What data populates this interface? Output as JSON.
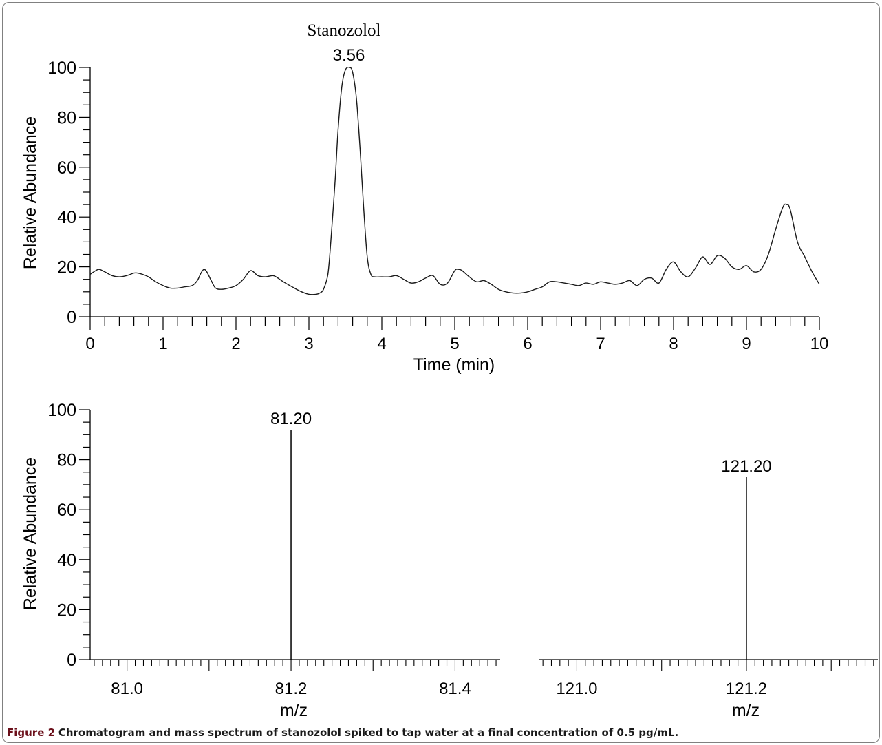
{
  "chart_data": [
    {
      "type": "line",
      "ylabel": "Relative Abundance",
      "xlabel": "Time (min)",
      "xlim": [
        0,
        10
      ],
      "ylim": [
        0,
        100
      ],
      "x_ticks": [
        "0",
        "1",
        "2",
        "3",
        "4",
        "5",
        "6",
        "7",
        "8",
        "9",
        "10"
      ],
      "y_ticks": [
        "0",
        "20",
        "40",
        "60",
        "80",
        "100"
      ],
      "annotations": [
        {
          "compound": "Stanozolol",
          "time_label": "3.56",
          "x": 3.56,
          "y": 100
        }
      ],
      "series": [
        {
          "x": [
            0,
            0.05,
            0.12,
            0.2,
            0.3,
            0.4,
            0.5,
            0.6,
            0.65,
            0.72,
            0.8,
            0.9,
            1.0,
            1.1,
            1.2,
            1.3,
            1.4,
            1.47,
            1.52,
            1.56,
            1.6,
            1.66,
            1.72,
            1.8,
            1.9,
            2.0,
            2.1,
            2.2,
            2.3,
            2.4,
            2.5,
            2.55,
            2.65,
            2.8,
            2.9,
            3.0,
            3.1,
            3.15,
            3.2,
            3.26,
            3.3,
            3.36,
            3.4,
            3.45,
            3.5,
            3.56,
            3.6,
            3.65,
            3.7,
            3.75,
            3.8,
            3.85,
            3.9,
            4.0,
            4.1,
            4.2,
            4.3,
            4.4,
            4.5,
            4.6,
            4.7,
            4.8,
            4.9,
            5.0,
            5.05,
            5.1,
            5.2,
            5.3,
            5.4,
            5.5,
            5.6,
            5.7,
            5.8,
            5.9,
            6.0,
            6.1,
            6.2,
            6.3,
            6.4,
            6.5,
            6.6,
            6.7,
            6.8,
            6.9,
            7.0,
            7.1,
            7.2,
            7.3,
            7.4,
            7.5,
            7.6,
            7.7,
            7.8,
            7.9,
            8.0,
            8.1,
            8.2,
            8.3,
            8.4,
            8.5,
            8.6,
            8.7,
            8.8,
            8.9,
            9.0,
            9.1,
            9.2,
            9.3,
            9.4,
            9.5,
            9.55,
            9.6,
            9.7,
            9.8,
            9.9,
            10.0
          ],
          "y": [
            17,
            18,
            19,
            18,
            16.5,
            16,
            16.5,
            17.5,
            17.5,
            17,
            16,
            14,
            12.5,
            11.5,
            11.5,
            12,
            12.5,
            14.5,
            17.5,
            19,
            18,
            14.5,
            11.5,
            11,
            11.5,
            12.5,
            15,
            18.5,
            16.5,
            16,
            16.5,
            16,
            14,
            11.5,
            10,
            9,
            9,
            9.5,
            11,
            17,
            30,
            55,
            75,
            92,
            99,
            100,
            98,
            88,
            68,
            44,
            24,
            17,
            16,
            16,
            16,
            16.5,
            15,
            13.5,
            14,
            15.5,
            16.5,
            13,
            13.5,
            18.5,
            19,
            18.5,
            16,
            14,
            14.5,
            13,
            11,
            10,
            9.5,
            9.5,
            10,
            11,
            12,
            14,
            14,
            13.5,
            13,
            12.5,
            13.5,
            13,
            14,
            13.5,
            13,
            13.5,
            14.5,
            12.5,
            15,
            15.5,
            13.5,
            19,
            22,
            18,
            16,
            19.5,
            24,
            21,
            24.5,
            23.5,
            20,
            19,
            20.5,
            18,
            19,
            25,
            35,
            44,
            45,
            43,
            30,
            24,
            18,
            13
          ]
        }
      ]
    },
    {
      "type": "bar",
      "ylabel": "Relative Abundance",
      "xlabel": "m/z",
      "ylim": [
        0,
        100
      ],
      "y_ticks": [
        "0",
        "20",
        "40",
        "60",
        "80",
        "100"
      ],
      "panels": [
        {
          "x_ticks": [
            "81.0",
            "81.2",
            "81.4"
          ],
          "xlim": [
            80.955,
            81.455
          ],
          "peaks": [
            {
              "mz": 81.2,
              "label": "81.20",
              "value": 92
            }
          ]
        },
        {
          "x_ticks": [
            "121.0",
            "121.2"
          ],
          "xlim": [
            120.955,
            121.355
          ],
          "peaks": [
            {
              "mz": 121.2,
              "label": "121.20",
              "value": 73
            }
          ]
        }
      ]
    }
  ],
  "caption": {
    "label": "Figure 2",
    "text": "Chromatogram and mass spectrum of stanozolol spiked to tap water at a final concentration of 0.5 pg/mL."
  }
}
